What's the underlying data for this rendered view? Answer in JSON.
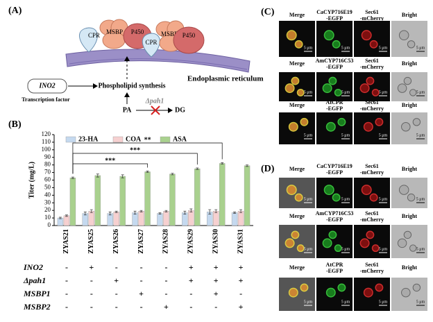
{
  "panel_a": {
    "label": "(A)",
    "cpr": "CPR",
    "msbp": "MSBP",
    "p450": "P450",
    "membrane": "Endoplasmic reticulum",
    "gene": "INO2",
    "gene_role": "Transcription factor",
    "product": "Phospholipid synthesis",
    "substrate": "PA",
    "knockout": "Δpah1",
    "byproduct": "DG"
  },
  "chart_data": {
    "type": "bar",
    "label": "(B)",
    "ylabel": "Titer (mg/L)",
    "categories": [
      "ZYAS21",
      "ZYAS25",
      "ZYAS26",
      "ZYAS27",
      "ZYAS28",
      "ZYAS29",
      "ZYAS30",
      "ZYAS31"
    ],
    "series": [
      {
        "name": "23-HA",
        "color": "#c5d9ef",
        "values": [
          10,
          16,
          16,
          17,
          16,
          17,
          18,
          17
        ],
        "errors": [
          1,
          2,
          2,
          2,
          1,
          2,
          3,
          1
        ]
      },
      {
        "name": "COA",
        "color": "#f6d0d0",
        "values": [
          13,
          19,
          18,
          19,
          19,
          20,
          19,
          19
        ],
        "errors": [
          1,
          2,
          1,
          1,
          1,
          2,
          2,
          2
        ]
      },
      {
        "name": "ASA",
        "color": "#a9d18e",
        "values": [
          63,
          66,
          65,
          71,
          68,
          75,
          82,
          79
        ],
        "errors": [
          1,
          2,
          2,
          1,
          1,
          1,
          1,
          1
        ]
      }
    ],
    "ylim": [
      0,
      120
    ],
    "yticks": [
      0,
      10,
      20,
      30,
      40,
      50,
      60,
      70,
      80,
      90,
      100,
      110,
      120
    ],
    "grid": false,
    "annotations": [
      {
        "text": "**",
        "between": [
          "ZYAS21",
          "ZYAS30"
        ]
      },
      {
        "text": "***",
        "between": [
          "ZYAS21",
          "ZYAS29"
        ]
      },
      {
        "text": "***",
        "between": [
          "ZYAS21",
          "ZYAS27"
        ]
      }
    ],
    "genotypes": [
      {
        "name": "INO2",
        "marks": [
          "-",
          "+",
          "-",
          "-",
          "-",
          "+",
          "+",
          "+"
        ]
      },
      {
        "name": "Δpah1",
        "marks": [
          "-",
          "-",
          "+",
          "-",
          "-",
          "+",
          "+",
          "+"
        ]
      },
      {
        "name": "MSBP1",
        "marks": [
          "-",
          "-",
          "-",
          "+",
          "-",
          "-",
          "+",
          "-"
        ]
      },
      {
        "name": "MSBP2",
        "marks": [
          "-",
          "-",
          "-",
          "-",
          "+",
          "-",
          "-",
          "+"
        ]
      }
    ]
  },
  "panel_c": {
    "label": "(C)",
    "scale_bar": "5 μm",
    "rows": [
      {
        "merge": "Merge",
        "fusion": [
          "CaCYP716E19",
          "-EGFP"
        ],
        "marker": [
          "Sec61",
          "-mCherry"
        ],
        "bright": "Bright"
      },
      {
        "merge": "Merge",
        "fusion": [
          "AmCYP716C53",
          "-EGFP"
        ],
        "marker": [
          "Sec61",
          "-mCherry"
        ],
        "bright": "Bright"
      },
      {
        "merge": "Merge",
        "fusion": [
          "AtCPR",
          "-EGFP"
        ],
        "marker": [
          "Sec61",
          "-mCherry"
        ],
        "bright": "Bright"
      }
    ]
  },
  "panel_d": {
    "label": "(D)",
    "scale_bar": "5 μm",
    "rows": [
      {
        "merge": "Merge",
        "fusion": [
          "CaCYP716E19",
          "-EGFP"
        ],
        "marker": [
          "Sec61",
          "-mCherry"
        ],
        "bright": "Bright"
      },
      {
        "merge": "Merge",
        "fusion": [
          "AmCYP716C53",
          "-EGFP"
        ],
        "marker": [
          "Sec61",
          "-mCherry"
        ],
        "bright": "Bright"
      },
      {
        "merge": "Merge",
        "fusion": [
          "AtCPR",
          "-EGFP"
        ],
        "marker": [
          "Sec61",
          "-mCherry"
        ],
        "bright": "Bright"
      }
    ]
  }
}
